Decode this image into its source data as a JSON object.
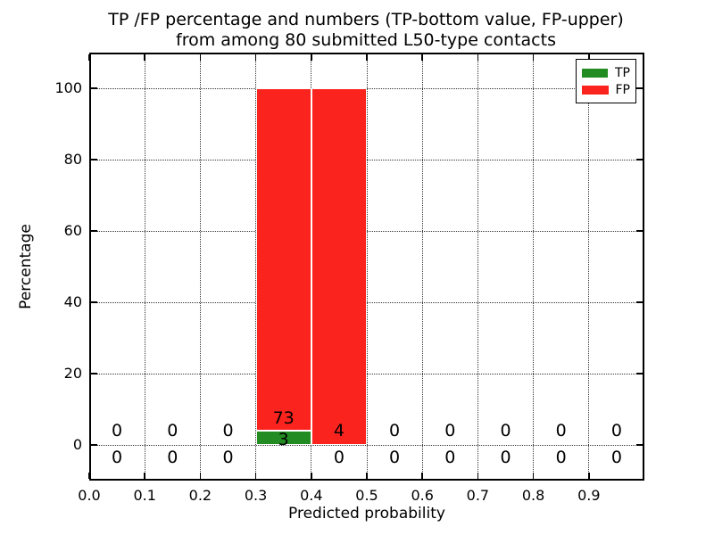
{
  "chart_data": {
    "type": "bar",
    "stacked": true,
    "title": "TP /FP percentage and numbers (TP-bottom value, FP-upper)\nfrom among 80 submitted L50-type contacts",
    "title_lines": [
      "TP /FP percentage and numbers (TP-bottom value, FP-upper)",
      "from among 80 submitted L50-type contacts"
    ],
    "xlabel": "Predicted probability",
    "ylabel": "Percentage",
    "xlim": [
      0.0,
      1.0
    ],
    "ylim": [
      -10,
      110
    ],
    "grid": true,
    "xticks": [
      {
        "v": 0.0,
        "label": "0.0"
      },
      {
        "v": 0.1,
        "label": "0.1"
      },
      {
        "v": 0.2,
        "label": "0.2"
      },
      {
        "v": 0.3,
        "label": "0.3"
      },
      {
        "v": 0.4,
        "label": "0.4"
      },
      {
        "v": 0.5,
        "label": "0.5"
      },
      {
        "v": 0.6,
        "label": "0.6"
      },
      {
        "v": 0.7,
        "label": "0.7"
      },
      {
        "v": 0.8,
        "label": "0.8"
      },
      {
        "v": 0.9,
        "label": "0.9"
      }
    ],
    "yticks": [
      {
        "v": 0,
        "label": "0"
      },
      {
        "v": 20,
        "label": "20"
      },
      {
        "v": 40,
        "label": "40"
      },
      {
        "v": 60,
        "label": "60"
      },
      {
        "v": 80,
        "label": "80"
      },
      {
        "v": 100,
        "label": "100"
      }
    ],
    "colors": {
      "tp": "#228b22",
      "fp": "#fb231d"
    },
    "legend": {
      "position": "upper right",
      "entries": [
        {
          "label": "TP",
          "color": "#228b22"
        },
        {
          "label": "FP",
          "color": "#fb231d"
        }
      ]
    },
    "bins": [
      {
        "x0": 0.0,
        "x1": 0.1,
        "tp_count": 0,
        "fp_count": 0,
        "tp_pct": 0,
        "fp_pct": 0,
        "tp_label_y": -3.5,
        "fp_label_y": 4
      },
      {
        "x0": 0.1,
        "x1": 0.2,
        "tp_count": 0,
        "fp_count": 0,
        "tp_pct": 0,
        "fp_pct": 0,
        "tp_label_y": -3.5,
        "fp_label_y": 4
      },
      {
        "x0": 0.2,
        "x1": 0.3,
        "tp_count": 0,
        "fp_count": 0,
        "tp_pct": 0,
        "fp_pct": 0,
        "tp_label_y": -3.5,
        "fp_label_y": 4
      },
      {
        "x0": 0.3,
        "x1": 0.4,
        "tp_count": 3,
        "fp_count": 73,
        "tp_pct": 3.9,
        "fp_pct": 96.1,
        "tp_label_y": 1.5,
        "fp_label_y": 7.5
      },
      {
        "x0": 0.4,
        "x1": 0.5,
        "tp_count": 0,
        "fp_count": 4,
        "tp_pct": 0,
        "fp_pct": 100,
        "tp_label_y": -3.5,
        "fp_label_y": 4
      },
      {
        "x0": 0.5,
        "x1": 0.6,
        "tp_count": 0,
        "fp_count": 0,
        "tp_pct": 0,
        "fp_pct": 0,
        "tp_label_y": -3.5,
        "fp_label_y": 4
      },
      {
        "x0": 0.6,
        "x1": 0.7,
        "tp_count": 0,
        "fp_count": 0,
        "tp_pct": 0,
        "fp_pct": 0,
        "tp_label_y": -3.5,
        "fp_label_y": 4
      },
      {
        "x0": 0.7,
        "x1": 0.8,
        "tp_count": 0,
        "fp_count": 0,
        "tp_pct": 0,
        "fp_pct": 0,
        "tp_label_y": -3.5,
        "fp_label_y": 4
      },
      {
        "x0": 0.8,
        "x1": 0.9,
        "tp_count": 0,
        "fp_count": 0,
        "tp_pct": 0,
        "fp_pct": 0,
        "tp_label_y": -3.5,
        "fp_label_y": 4
      },
      {
        "x0": 0.9,
        "x1": 1.0,
        "tp_count": 0,
        "fp_count": 0,
        "tp_pct": 0,
        "fp_pct": 0,
        "tp_label_y": -3.5,
        "fp_label_y": 4
      }
    ]
  }
}
